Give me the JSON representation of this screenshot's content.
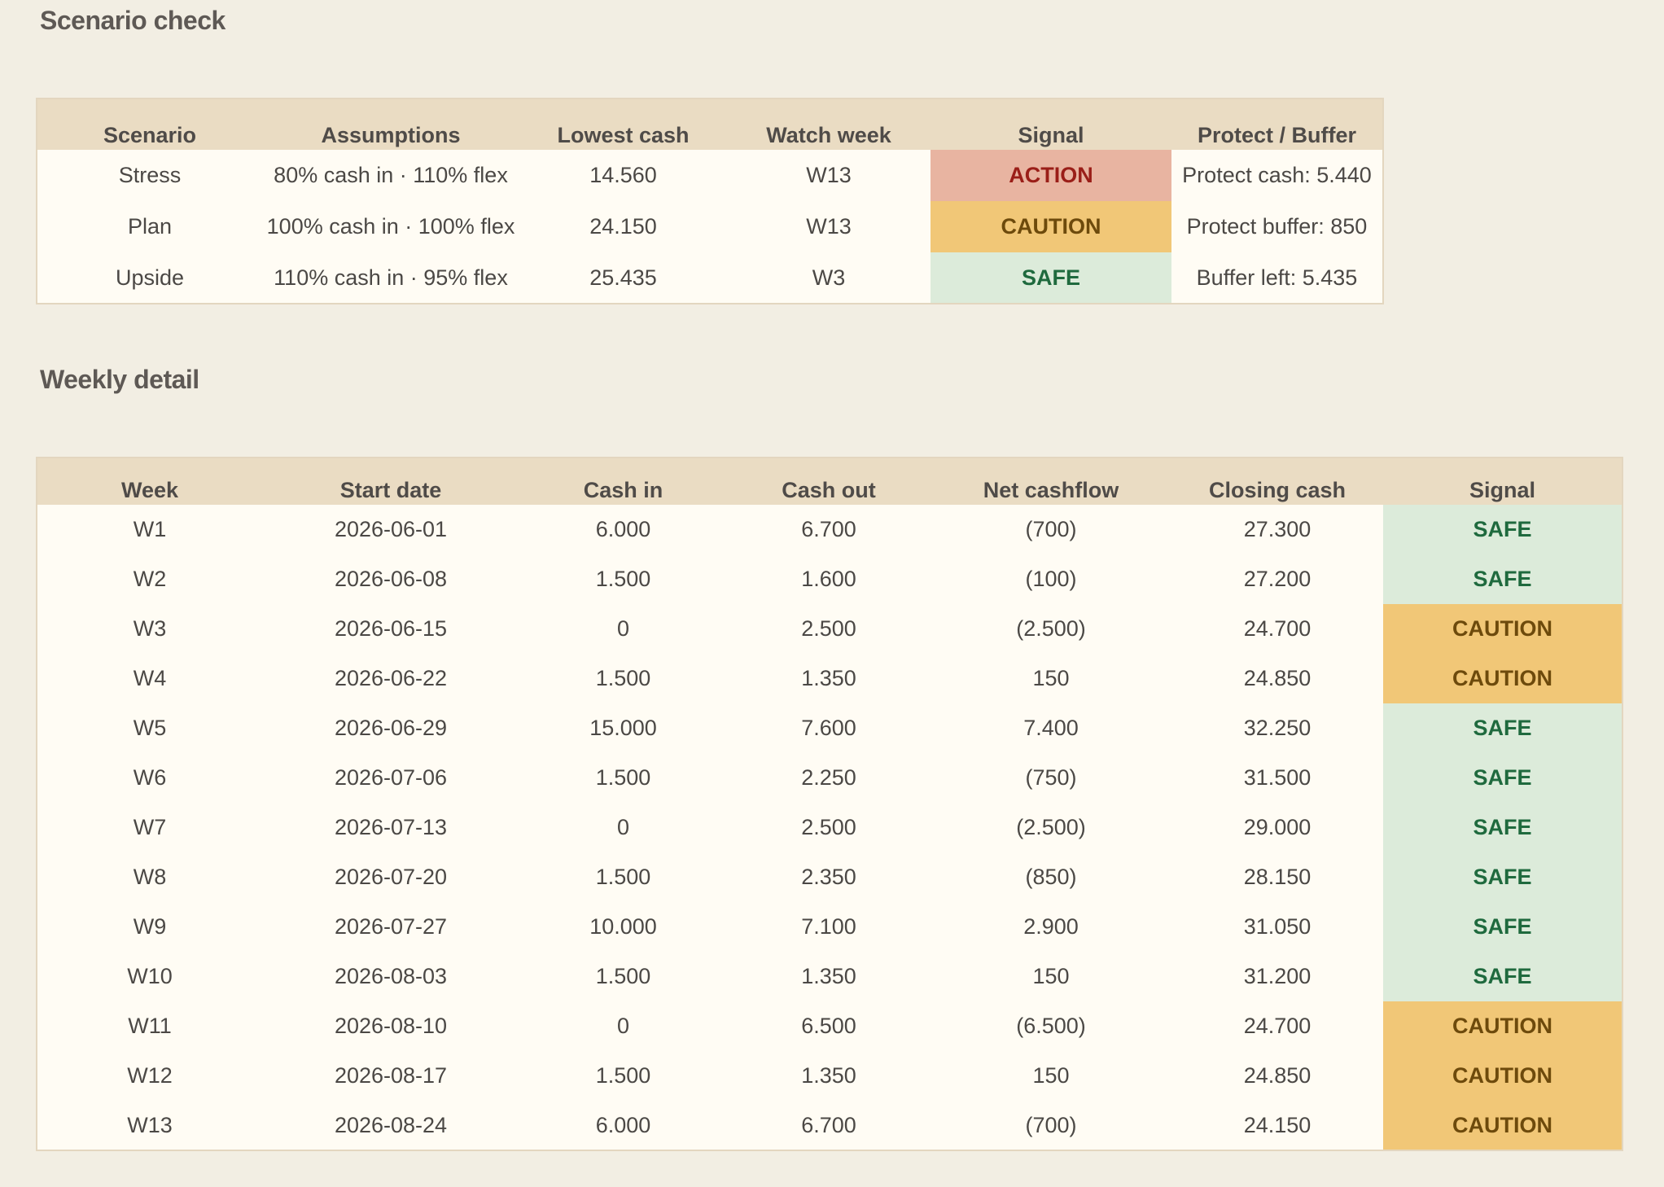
{
  "scenario_section": {
    "title": "Scenario check",
    "headers": [
      "Scenario",
      "Assumptions",
      "Lowest cash",
      "Watch week",
      "Signal",
      "Protect / Buffer"
    ],
    "rows": [
      {
        "scenario": "Stress",
        "assumptions": "80% cash in · 110% flex",
        "lowest_cash": "14.560",
        "watch_week": "W13",
        "signal": "ACTION",
        "protect": "Protect cash: 5.440"
      },
      {
        "scenario": "Plan",
        "assumptions": "100% cash in · 100% flex",
        "lowest_cash": "24.150",
        "watch_week": "W13",
        "signal": "CAUTION",
        "protect": "Protect buffer: 850"
      },
      {
        "scenario": "Upside",
        "assumptions": "110% cash in · 95% flex",
        "lowest_cash": "25.435",
        "watch_week": "W3",
        "signal": "SAFE",
        "protect": "Buffer left: 5.435"
      }
    ]
  },
  "weekly_section": {
    "title": "Weekly detail",
    "headers": [
      "Week",
      "Start date",
      "Cash in",
      "Cash out",
      "Net cashflow",
      "Closing cash",
      "Signal"
    ],
    "rows": [
      {
        "week": "W1",
        "start": "2026-06-01",
        "cash_in": "6.000",
        "cash_out": "6.700",
        "net": "(700)",
        "closing": "27.300",
        "signal": "SAFE"
      },
      {
        "week": "W2",
        "start": "2026-06-08",
        "cash_in": "1.500",
        "cash_out": "1.600",
        "net": "(100)",
        "closing": "27.200",
        "signal": "SAFE"
      },
      {
        "week": "W3",
        "start": "2026-06-15",
        "cash_in": "0",
        "cash_out": "2.500",
        "net": "(2.500)",
        "closing": "24.700",
        "signal": "CAUTION"
      },
      {
        "week": "W4",
        "start": "2026-06-22",
        "cash_in": "1.500",
        "cash_out": "1.350",
        "net": "150",
        "closing": "24.850",
        "signal": "CAUTION"
      },
      {
        "week": "W5",
        "start": "2026-06-29",
        "cash_in": "15.000",
        "cash_out": "7.600",
        "net": "7.400",
        "closing": "32.250",
        "signal": "SAFE"
      },
      {
        "week": "W6",
        "start": "2026-07-06",
        "cash_in": "1.500",
        "cash_out": "2.250",
        "net": "(750)",
        "closing": "31.500",
        "signal": "SAFE"
      },
      {
        "week": "W7",
        "start": "2026-07-13",
        "cash_in": "0",
        "cash_out": "2.500",
        "net": "(2.500)",
        "closing": "29.000",
        "signal": "SAFE"
      },
      {
        "week": "W8",
        "start": "2026-07-20",
        "cash_in": "1.500",
        "cash_out": "2.350",
        "net": "(850)",
        "closing": "28.150",
        "signal": "SAFE"
      },
      {
        "week": "W9",
        "start": "2026-07-27",
        "cash_in": "10.000",
        "cash_out": "7.100",
        "net": "2.900",
        "closing": "31.050",
        "signal": "SAFE"
      },
      {
        "week": "W10",
        "start": "2026-08-03",
        "cash_in": "1.500",
        "cash_out": "1.350",
        "net": "150",
        "closing": "31.200",
        "signal": "SAFE"
      },
      {
        "week": "W11",
        "start": "2026-08-10",
        "cash_in": "0",
        "cash_out": "6.500",
        "net": "(6.500)",
        "closing": "24.700",
        "signal": "CAUTION"
      },
      {
        "week": "W12",
        "start": "2026-08-17",
        "cash_in": "1.500",
        "cash_out": "1.350",
        "net": "150",
        "closing": "24.850",
        "signal": "CAUTION"
      },
      {
        "week": "W13",
        "start": "2026-08-24",
        "cash_in": "6.000",
        "cash_out": "6.700",
        "net": "(700)",
        "closing": "24.150",
        "signal": "CAUTION"
      }
    ]
  },
  "signal_colors": {
    "SAFE": {
      "bg": "#dcebda",
      "fg": "#1f6a3e"
    },
    "CAUTION": {
      "bg": "#f1c777",
      "fg": "#6d4a0c"
    },
    "ACTION": {
      "bg": "#e8b4a1",
      "fg": "#9a1e18"
    }
  }
}
